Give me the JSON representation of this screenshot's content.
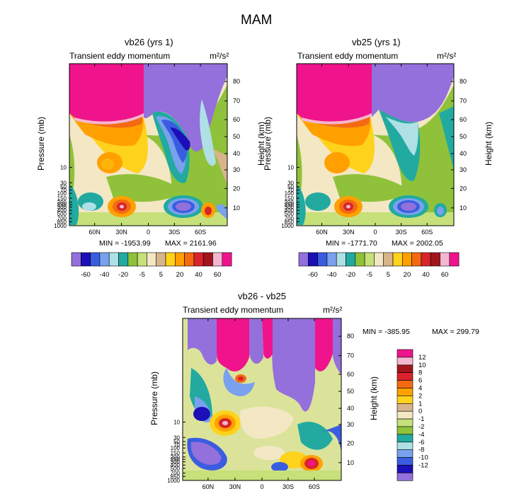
{
  "title": "MAM",
  "chart_data": [
    {
      "type": "heatmap",
      "title": "vb26 (yrs 1)",
      "subtitle_left": "Transient eddy momentum",
      "units": "m²/s²",
      "ylabel_left": "Pressure (mb)",
      "ylabel_right": "Height (km)",
      "x_ticks": [
        "60N",
        "30N",
        "0",
        "30S",
        "60S"
      ],
      "y_left_ticks": [
        "10",
        "30",
        "50",
        "70",
        "100",
        "150",
        "200",
        "250",
        "300",
        "400",
        "500",
        "700",
        "850",
        "1000"
      ],
      "y_right_ticks": [
        "80",
        "70",
        "60",
        "50",
        "40",
        "30",
        "20",
        "10"
      ],
      "min_label": "MIN = -1953.99",
      "max_label": "MAX = 2161.96",
      "min": -1953.99,
      "max": 2161.96,
      "colorbar_labels": [
        "-60",
        "-40",
        "-20",
        "-5",
        "5",
        "20",
        "40",
        "60"
      ]
    },
    {
      "type": "heatmap",
      "title": "vb25 (yrs 1)",
      "subtitle_left": "Transient eddy momentum",
      "units": "m²/s²",
      "ylabel_left": "Pressure (mb)",
      "ylabel_right": "Height (km)",
      "x_ticks": [
        "60N",
        "30N",
        "0",
        "30S",
        "60S"
      ],
      "y_left_ticks": [
        "10",
        "30",
        "50",
        "70",
        "100",
        "150",
        "200",
        "250",
        "300",
        "400",
        "500",
        "700",
        "850",
        "1000"
      ],
      "y_right_ticks": [
        "80",
        "70",
        "60",
        "50",
        "40",
        "30",
        "20",
        "10"
      ],
      "min_label": "MIN = -1771.70",
      "max_label": "MAX = 2002.05",
      "min": -1771.7,
      "max": 2002.05,
      "colorbar_labels": [
        "-60",
        "-40",
        "-20",
        "-5",
        "5",
        "20",
        "40",
        "60"
      ]
    },
    {
      "type": "heatmap",
      "title": "vb26 - vb25",
      "subtitle_left": "Transient eddy momentum",
      "units": "m²/s²",
      "ylabel_left": "Pressure (mb)",
      "ylabel_right": "Height (km)",
      "x_ticks": [
        "60N",
        "30N",
        "0",
        "30S",
        "60S"
      ],
      "y_left_ticks": [
        "10",
        "30",
        "50",
        "70",
        "100",
        "150",
        "200",
        "250",
        "300",
        "400",
        "500",
        "700",
        "850",
        "1000"
      ],
      "y_right_ticks": [
        "80",
        "70",
        "60",
        "50",
        "40",
        "30",
        "20",
        "10"
      ],
      "min_label": "MIN = -385.95",
      "max_label": "MAX = 299.79",
      "min": -385.95,
      "max": 299.79,
      "colorbar_labels": [
        "12",
        "10",
        "8",
        "6",
        "4",
        "2",
        "1",
        "0",
        "-1",
        "-2",
        "-4",
        "-6",
        "-8",
        "-10",
        "-12"
      ]
    }
  ],
  "palette": [
    "#9370db",
    "#1c0fb8",
    "#3a5de0",
    "#79a1ee",
    "#aee0e6",
    "#22aaa0",
    "#8fc23a",
    "#c6e07a",
    "#f3e7c4",
    "#d7b48a",
    "#ffd21c",
    "#ffa000",
    "#f46a13",
    "#d8242a",
    "#a3151d",
    "#f5b7d0",
    "#f0148c"
  ],
  "palette_diff": [
    "#f0148c",
    "#f5b7d0",
    "#a3151d",
    "#d8242a",
    "#f46a13",
    "#ffa000",
    "#ffd21c",
    "#d7b48a",
    "#f3e7c4",
    "#c6e07a",
    "#8fc23a",
    "#22aaa0",
    "#aee0e6",
    "#79a1ee",
    "#3a5de0",
    "#1c0fb8",
    "#9370db"
  ]
}
